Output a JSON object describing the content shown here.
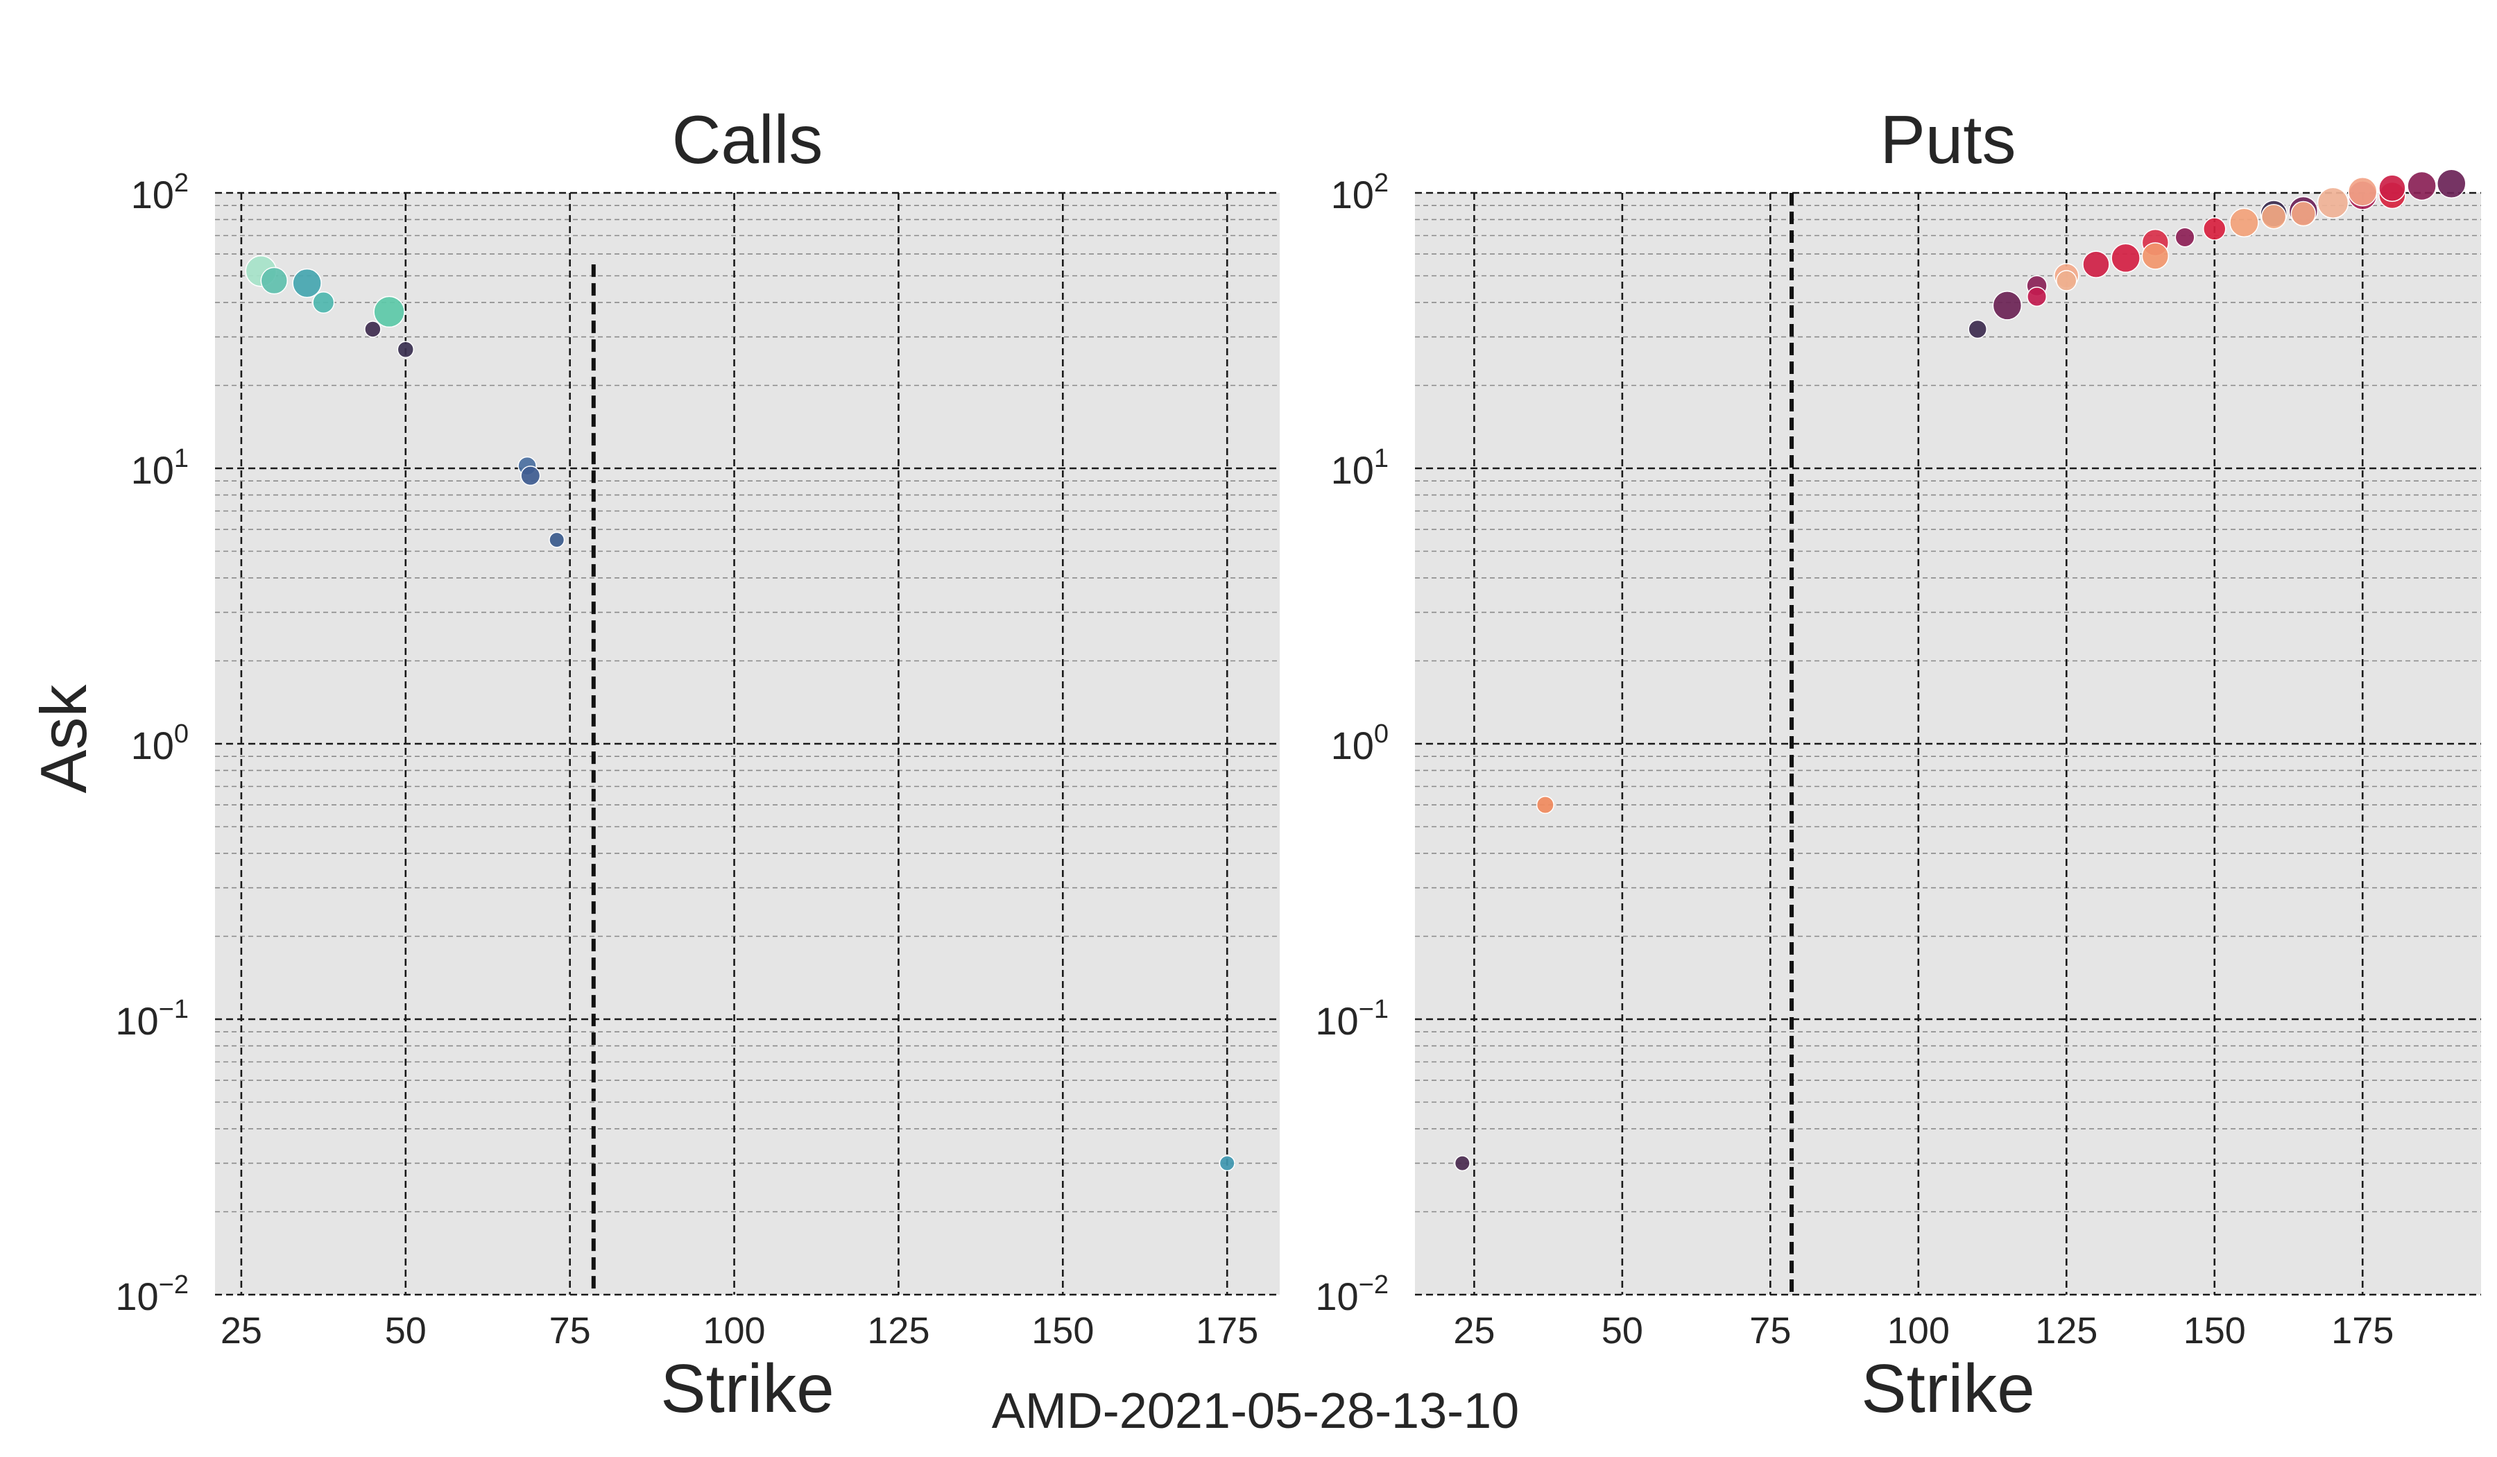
{
  "figure": {
    "suptitle": "AMD-2021-05-28-13-10"
  },
  "chart_data": [
    {
      "type": "scatter",
      "title": "Calls",
      "xlabel": "Strike",
      "ylabel": "Ask",
      "yscale": "log",
      "xlim": [
        21,
        183
      ],
      "ylim": [
        0.01,
        100
      ],
      "xticks": [
        25,
        50,
        75,
        100,
        125,
        150,
        175
      ],
      "yticks": [
        {
          "base": "10",
          "exp": "2",
          "value": 100
        },
        {
          "base": "10",
          "exp": "1",
          "value": 10
        },
        {
          "base": "10",
          "exp": "0",
          "value": 1
        },
        {
          "base": "10",
          "exp": "−1",
          "value": 0.1
        },
        {
          "base": "10",
          "exp": "−2",
          "value": 0.01
        }
      ],
      "underlying_price": 78.6,
      "underlying_line_ymax": 55,
      "points": [
        {
          "x": 28,
          "y": 52,
          "size": 1.0,
          "color": "#a6e3c9"
        },
        {
          "x": 30,
          "y": 48,
          "size": 0.8,
          "color": "#5fc0ae"
        },
        {
          "x": 35,
          "y": 47,
          "size": 0.9,
          "color": "#45a6b0"
        },
        {
          "x": 37.5,
          "y": 40,
          "size": 0.55,
          "color": "#4fb7af"
        },
        {
          "x": 45,
          "y": 32,
          "size": 0.3,
          "color": "#3f2d4f"
        },
        {
          "x": 47.5,
          "y": 37,
          "size": 1.0,
          "color": "#5cc9a8"
        },
        {
          "x": 50,
          "y": 27,
          "size": 0.3,
          "color": "#3a3050"
        },
        {
          "x": 68.5,
          "y": 10.2,
          "size": 0.4,
          "color": "#4a6fa0"
        },
        {
          "x": 69,
          "y": 9.4,
          "size": 0.45,
          "color": "#3f5c90"
        },
        {
          "x": 73,
          "y": 5.5,
          "size": 0.25,
          "color": "#3a5a8c"
        },
        {
          "x": 175,
          "y": 0.03,
          "size": 0.25,
          "color": "#3f97b0"
        }
      ]
    },
    {
      "type": "scatter",
      "title": "Puts",
      "xlabel": "Strike",
      "ylabel": "",
      "yscale": "log",
      "xlim": [
        15,
        195
      ],
      "ylim": [
        0.01,
        100
      ],
      "xticks": [
        25,
        50,
        75,
        100,
        125,
        150,
        175
      ],
      "yticks": [
        {
          "base": "10",
          "exp": "2",
          "value": 100
        },
        {
          "base": "10",
          "exp": "1",
          "value": 10
        },
        {
          "base": "10",
          "exp": "0",
          "value": 1
        },
        {
          "base": "10",
          "exp": "−1",
          "value": 0.1
        },
        {
          "base": "10",
          "exp": "−2",
          "value": 0.01
        }
      ],
      "underlying_price": 78.6,
      "underlying_line_ymax": 100,
      "points": [
        {
          "x": 23,
          "y": 0.03,
          "size": 0.25,
          "color": "#4a2a4f"
        },
        {
          "x": 37,
          "y": 0.6,
          "size": 0.35,
          "color": "#f08a5d"
        },
        {
          "x": 110,
          "y": 32,
          "size": 0.4,
          "color": "#3d2b4f"
        },
        {
          "x": 115,
          "y": 39,
          "size": 0.9,
          "color": "#6b2355"
        },
        {
          "x": 120,
          "y": 46,
          "size": 0.5,
          "color": "#8a2257"
        },
        {
          "x": 120,
          "y": 42,
          "size": 0.45,
          "color": "#c21b4f"
        },
        {
          "x": 125,
          "y": 50,
          "size": 0.7,
          "color": "#f3a98a"
        },
        {
          "x": 125,
          "y": 48,
          "size": 0.5,
          "color": "#efb08f"
        },
        {
          "x": 130,
          "y": 55,
          "size": 0.8,
          "color": "#cf1f45"
        },
        {
          "x": 135,
          "y": 58,
          "size": 0.9,
          "color": "#d42043"
        },
        {
          "x": 140,
          "y": 66,
          "size": 0.8,
          "color": "#d9304a"
        },
        {
          "x": 140,
          "y": 59,
          "size": 0.8,
          "color": "#f2966d"
        },
        {
          "x": 145,
          "y": 69,
          "size": 0.45,
          "color": "#8d2056"
        },
        {
          "x": 150,
          "y": 74,
          "size": 0.6,
          "color": "#d8213f"
        },
        {
          "x": 155,
          "y": 78,
          "size": 0.9,
          "color": "#f3a27a"
        },
        {
          "x": 160,
          "y": 84,
          "size": 0.8,
          "color": "#3b2b4e"
        },
        {
          "x": 160,
          "y": 82,
          "size": 0.7,
          "color": "#f4a983"
        },
        {
          "x": 165,
          "y": 86,
          "size": 0.9,
          "color": "#6c2258"
        },
        {
          "x": 165,
          "y": 84,
          "size": 0.7,
          "color": "#f3a683"
        },
        {
          "x": 170,
          "y": 92,
          "size": 1.0,
          "color": "#f0b296"
        },
        {
          "x": 175,
          "y": 98,
          "size": 0.9,
          "color": "#a91f55"
        },
        {
          "x": 175,
          "y": 101,
          "size": 0.9,
          "color": "#f2a387"
        },
        {
          "x": 180,
          "y": 98,
          "size": 0.8,
          "color": "#d7233f"
        },
        {
          "x": 180,
          "y": 104,
          "size": 0.8,
          "color": "#cc1f46"
        },
        {
          "x": 185,
          "y": 106,
          "size": 0.9,
          "color": "#8a2156"
        },
        {
          "x": 190,
          "y": 108,
          "size": 0.9,
          "color": "#6a2357"
        }
      ]
    }
  ]
}
